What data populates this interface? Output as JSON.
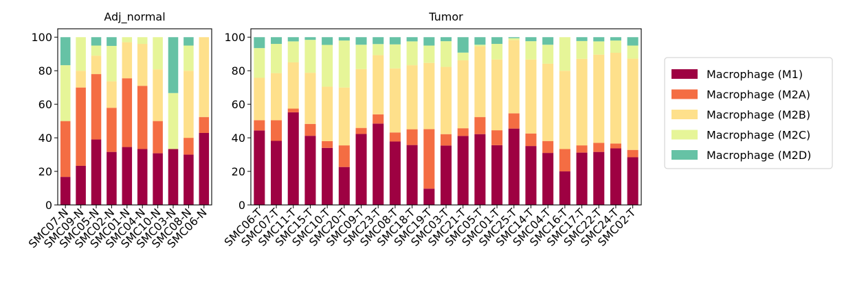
{
  "chart_data": [
    {
      "type": "bar",
      "stacked": true,
      "title": "Adj_normal",
      "categories": [
        "SMC07-N",
        "SMC09-N",
        "SMC05-N",
        "SMC02-N",
        "SMC01-N",
        "SMC04-N",
        "SMC10-N",
        "SMC03-N",
        "SMC08-N",
        "SMC06-N"
      ],
      "ylim": [
        0,
        105
      ],
      "yticks": [
        0,
        20,
        40,
        60,
        80,
        100
      ],
      "series": [
        {
          "name": "Macrophage (M1)",
          "color": "#9e0142",
          "values": [
            16.7,
            23.3,
            39.0,
            31.6,
            34.5,
            33.3,
            30.8,
            33.3,
            30.0,
            42.9
          ]
        },
        {
          "name": "Macrophage (M2A)",
          "color": "#f46d43",
          "values": [
            33.3,
            46.7,
            39.0,
            26.3,
            41.0,
            37.7,
            19.2,
            0.0,
            10.0,
            9.5
          ]
        },
        {
          "name": "Macrophage (M2B)",
          "color": "#fee08b",
          "values": [
            0.0,
            10.0,
            11.0,
            15.8,
            21.5,
            25.0,
            30.8,
            0.0,
            40.0,
            47.6
          ]
        },
        {
          "name": "Macrophage (M2C)",
          "color": "#e6f598",
          "values": [
            33.3,
            20.0,
            6.0,
            21.1,
            3.0,
            4.0,
            19.2,
            33.4,
            15.0,
            0.0
          ]
        },
        {
          "name": "Macrophage (M2D)",
          "color": "#66c2a5",
          "values": [
            16.7,
            0.0,
            5.0,
            5.2,
            0.0,
            0.0,
            0.0,
            33.3,
            5.0,
            0.0
          ]
        }
      ]
    },
    {
      "type": "bar",
      "stacked": true,
      "title": "Tumor",
      "categories": [
        "SMC06-T",
        "SMC07-T",
        "SMC11-T",
        "SMC15-T",
        "SMC10-T",
        "SMC20-T",
        "SMC09-T",
        "SMC23-T",
        "SMC08-T",
        "SMC18-T",
        "SMC19-T",
        "SMC03-T",
        "SMC21-T",
        "SMC05-T",
        "SMC01-T",
        "SMC25-T",
        "SMC14-T",
        "SMC04-T",
        "SMC16-T",
        "SMC17-T",
        "SMC22-T",
        "SMC24-T",
        "SMC02-T"
      ],
      "ylim": [
        0,
        105
      ],
      "yticks": [
        0,
        20,
        40,
        60,
        80,
        100
      ],
      "series": [
        {
          "name": "Macrophage (M1)",
          "color": "#9e0142",
          "values": [
            44.4,
            38.2,
            55.2,
            41.2,
            34.0,
            22.6,
            42.3,
            48.5,
            37.8,
            35.7,
            9.7,
            35.4,
            41.1,
            42.2,
            35.6,
            45.5,
            35.1,
            31.0,
            20.0,
            31.2,
            31.6,
            33.7,
            28.4
          ]
        },
        {
          "name": "Macrophage (M2A)",
          "color": "#f46d43",
          "values": [
            6.1,
            12.3,
            2.2,
            7.1,
            4.0,
            12.9,
            3.6,
            5.5,
            5.4,
            9.4,
            35.5,
            6.8,
            4.6,
            10.2,
            8.9,
            9.1,
            7.5,
            7.1,
            13.3,
            4.3,
            5.4,
            2.9,
            4.4
          ]
        },
        {
          "name": "Macrophage (M2B)",
          "color": "#fee08b",
          "values": [
            25.3,
            28.1,
            27.6,
            30.5,
            32.5,
            34.5,
            35.1,
            35.3,
            38.2,
            38.2,
            39.5,
            40.1,
            40.5,
            42.2,
            42.2,
            43.7,
            44.1,
            46.1,
            46.7,
            51.6,
            52.6,
            54.1,
            54.4
          ]
        },
        {
          "name": "Macrophage (M2C)",
          "color": "#e6f598",
          "values": [
            17.7,
            17.4,
            12.5,
            19.6,
            24.9,
            28.0,
            14.5,
            6.6,
            14.3,
            14.2,
            10.3,
            15.3,
            4.6,
            0.9,
            9.3,
            1.1,
            10.9,
            11.3,
            20.0,
            10.6,
            7.9,
            7.3,
            7.8
          ]
        },
        {
          "name": "Macrophage (M2D)",
          "color": "#66c2a5",
          "values": [
            6.5,
            4.0,
            2.5,
            1.6,
            4.6,
            2.0,
            4.5,
            4.1,
            4.3,
            2.5,
            5.0,
            2.4,
            9.2,
            4.5,
            4.0,
            0.6,
            2.4,
            4.5,
            0.0,
            2.3,
            2.5,
            2.0,
            5.0
          ]
        }
      ]
    }
  ],
  "legend": {
    "placement": "right",
    "entries": [
      "Macrophage (M1)",
      "Macrophage (M2A)",
      "Macrophage (M2B)",
      "Macrophage (M2C)",
      "Macrophage (M2D)"
    ],
    "colors": [
      "#9e0142",
      "#f46d43",
      "#fee08b",
      "#e6f598",
      "#66c2a5"
    ]
  }
}
